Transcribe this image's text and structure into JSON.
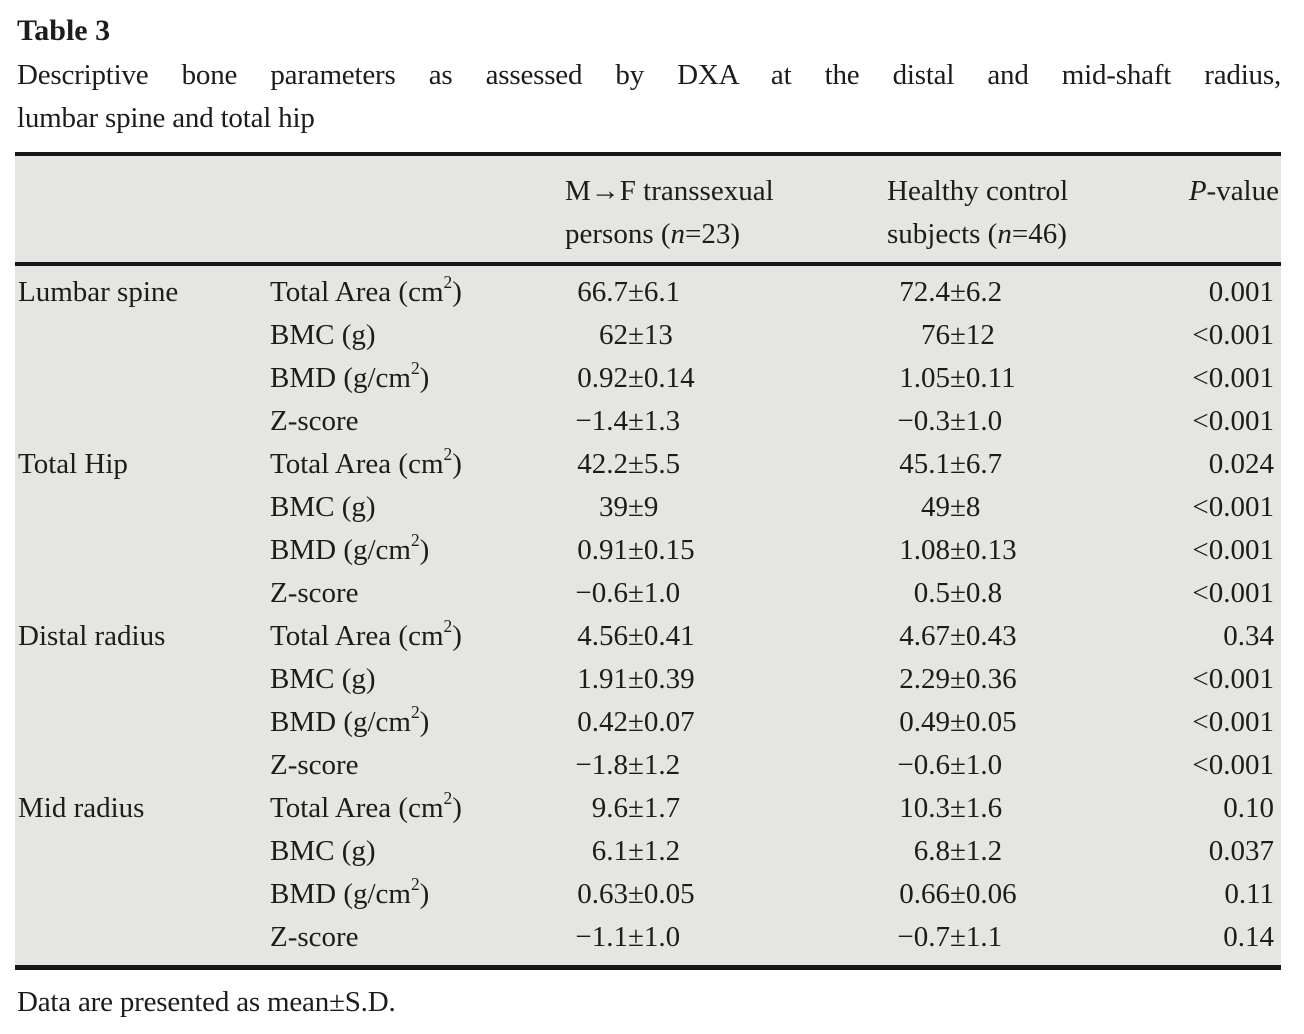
{
  "title": "Table 3",
  "caption": {
    "line1": "Descriptive bone parameters as assessed by DXA at the distal and mid-shaft radius,",
    "line2": "lumbar spine and total hip"
  },
  "symbols": {
    "pm": "±"
  },
  "table": {
    "header": {
      "group1": {
        "line1": "M→F transsexual",
        "pre": "persons (",
        "n": "n",
        "post": "=23)"
      },
      "group2": {
        "line1": "Healthy control",
        "pre": "subjects (",
        "n": "n",
        "post": "=46)"
      },
      "pvalue": {
        "italic": "P",
        "rest": "-value"
      }
    },
    "rows": [
      {
        "group": "Lumbar spine",
        "param_pre": "Total Area (cm",
        "param_sup": "2",
        "param_post": ")",
        "g1_mean": "66.7",
        "g1_sd": "6.1",
        "g2_mean": "72.4",
        "g2_sd": "6.2",
        "p": "0.001"
      },
      {
        "group": "",
        "param_pre": "BMC (g)",
        "param_sup": "",
        "param_post": "",
        "g1_mean": "62",
        "g1_sd": "13",
        "g2_mean": "76",
        "g2_sd": "12",
        "p": "<0.001"
      },
      {
        "group": "",
        "param_pre": "BMD (g/cm",
        "param_sup": "2",
        "param_post": ")",
        "g1_mean": "0.92",
        "g1_sd": "0.14",
        "g2_mean": "1.05",
        "g2_sd": "0.11",
        "p": "<0.001"
      },
      {
        "group": "",
        "param_pre": "Z-score",
        "param_sup": "",
        "param_post": "",
        "g1_mean": "−1.4",
        "g1_sd": "1.3",
        "g2_mean": "−0.3",
        "g2_sd": "1.0",
        "p": "<0.001"
      },
      {
        "group": "Total Hip",
        "param_pre": "Total Area (cm",
        "param_sup": "2",
        "param_post": ")",
        "g1_mean": "42.2",
        "g1_sd": "5.5",
        "g2_mean": "45.1",
        "g2_sd": "6.7",
        "p": "0.024"
      },
      {
        "group": "",
        "param_pre": "BMC (g)",
        "param_sup": "",
        "param_post": "",
        "g1_mean": "39",
        "g1_sd": "9",
        "g2_mean": "49",
        "g2_sd": "8",
        "p": "<0.001"
      },
      {
        "group": "",
        "param_pre": "BMD (g/cm",
        "param_sup": "2",
        "param_post": ")",
        "g1_mean": "0.91",
        "g1_sd": "0.15",
        "g2_mean": "1.08",
        "g2_sd": "0.13",
        "p": "<0.001"
      },
      {
        "group": "",
        "param_pre": "Z-score",
        "param_sup": "",
        "param_post": "",
        "g1_mean": "−0.6",
        "g1_sd": "1.0",
        "g2_mean": "0.5",
        "g2_sd": "0.8",
        "p": "<0.001"
      },
      {
        "group": "Distal radius",
        "param_pre": "Total Area (cm",
        "param_sup": "2",
        "param_post": ")",
        "g1_mean": "4.56",
        "g1_sd": "0.41",
        "g2_mean": "4.67",
        "g2_sd": "0.43",
        "p": "0.34"
      },
      {
        "group": "",
        "param_pre": "BMC (g)",
        "param_sup": "",
        "param_post": "",
        "g1_mean": "1.91",
        "g1_sd": "0.39",
        "g2_mean": "2.29",
        "g2_sd": "0.36",
        "p": "<0.001"
      },
      {
        "group": "",
        "param_pre": "BMD (g/cm",
        "param_sup": "2",
        "param_post": ")",
        "g1_mean": "0.42",
        "g1_sd": "0.07",
        "g2_mean": "0.49",
        "g2_sd": "0.05",
        "p": "<0.001"
      },
      {
        "group": "",
        "param_pre": "Z-score",
        "param_sup": "",
        "param_post": "",
        "g1_mean": "−1.8",
        "g1_sd": "1.2",
        "g2_mean": "−0.6",
        "g2_sd": "1.0",
        "p": "<0.001"
      },
      {
        "group": "Mid radius",
        "param_pre": "Total Area (cm",
        "param_sup": "2",
        "param_post": ")",
        "g1_mean": "9.6",
        "g1_sd": "1.7",
        "g2_mean": "10.3",
        "g2_sd": "1.6",
        "p": "0.10"
      },
      {
        "group": "",
        "param_pre": "BMC (g)",
        "param_sup": "",
        "param_post": "",
        "g1_mean": "6.1",
        "g1_sd": "1.2",
        "g2_mean": "6.8",
        "g2_sd": "1.2",
        "p": "0.037"
      },
      {
        "group": "",
        "param_pre": "BMD (g/cm",
        "param_sup": "2",
        "param_post": ")",
        "g1_mean": "0.63",
        "g1_sd": "0.05",
        "g2_mean": "0.66",
        "g2_sd": "0.06",
        "p": "0.11"
      },
      {
        "group": "",
        "param_pre": "Z-score",
        "param_sup": "",
        "param_post": "",
        "g1_mean": "−1.1",
        "g1_sd": "1.0",
        "g2_mean": "−0.7",
        "g2_sd": "1.1",
        "p": "0.14"
      }
    ]
  },
  "footnote": "Data are presented as mean±S.D."
}
